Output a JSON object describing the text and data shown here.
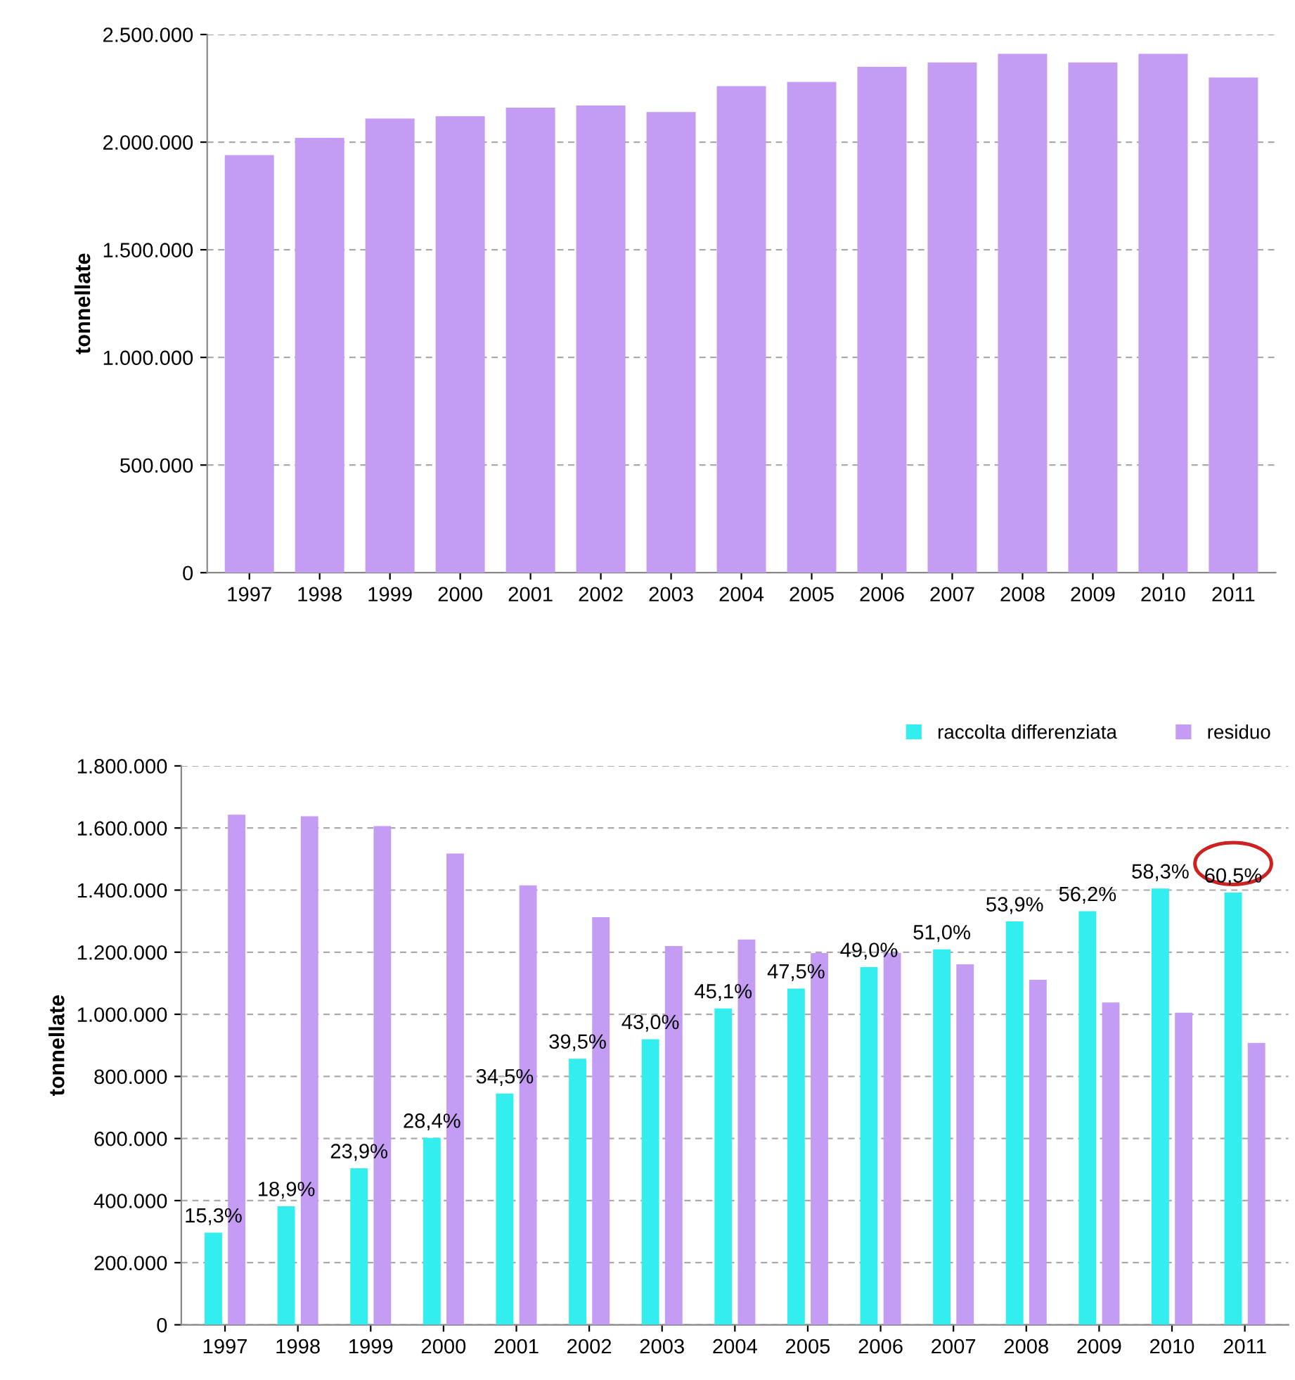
{
  "chart_data": [
    {
      "type": "bar",
      "ylabel": "tonnellate",
      "categories": [
        "1997",
        "1998",
        "1999",
        "2000",
        "2001",
        "2002",
        "2003",
        "2004",
        "2005",
        "2006",
        "2007",
        "2008",
        "2009",
        "2010",
        "2011"
      ],
      "series": [
        {
          "color": "#c49cf4",
          "values": [
            1940000,
            2020000,
            2110000,
            2120000,
            2160000,
            2170000,
            2140000,
            2260000,
            2280000,
            2350000,
            2370000,
            2410000,
            2370000,
            2410000,
            2300000
          ]
        }
      ],
      "ylim": [
        0,
        2500000
      ],
      "yticks": [
        {
          "value": 0,
          "label": "0"
        },
        {
          "value": 500000,
          "label": "500.000"
        },
        {
          "value": 1000000,
          "label": "1.000.000"
        },
        {
          "value": 1500000,
          "label": "1.500.000"
        },
        {
          "value": 2000000,
          "label": "2.000.000"
        },
        {
          "value": 2500000,
          "label": "2.500.000"
        }
      ],
      "grid": "y",
      "legend": false
    },
    {
      "type": "bar",
      "ylabel": "tonnellate",
      "categories": [
        "1997",
        "1998",
        "1999",
        "2000",
        "2001",
        "2002",
        "2003",
        "2004",
        "2005",
        "2006",
        "2007",
        "2008",
        "2009",
        "2010",
        "2011"
      ],
      "series": [
        {
          "name": "raccolta differenziata",
          "color": "#33eeee",
          "values": [
            297000,
            382000,
            504000,
            602000,
            745000,
            857000,
            920000,
            1019000,
            1083000,
            1152000,
            1209000,
            1299000,
            1332000,
            1405000,
            1392000
          ]
        },
        {
          "name": "residuo",
          "color": "#c49cf4",
          "values": [
            1643000,
            1638000,
            1606000,
            1518000,
            1415000,
            1313000,
            1220000,
            1241000,
            1197000,
            1198000,
            1161000,
            1111000,
            1038000,
            1005000,
            908000
          ]
        }
      ],
      "ylim": [
        0,
        1800000
      ],
      "yticks": [
        {
          "value": 0,
          "label": "0"
        },
        {
          "value": 200000,
          "label": "200.000"
        },
        {
          "value": 400000,
          "label": "400.000"
        },
        {
          "value": 600000,
          "label": "600.000"
        },
        {
          "value": 800000,
          "label": "800.000"
        },
        {
          "value": 1000000,
          "label": "1.000.000"
        },
        {
          "value": 1200000,
          "label": "1.200.000"
        },
        {
          "value": 1400000,
          "label": "1.400.000"
        },
        {
          "value": 1600000,
          "label": "1.600.000"
        },
        {
          "value": 1800000,
          "label": "1.800.000"
        }
      ],
      "annotations": [
        {
          "text": "15,3%",
          "x": "1997",
          "y": 297000
        },
        {
          "text": "18,9%",
          "x": "1998",
          "y": 382000
        },
        {
          "text": "23,9%",
          "x": "1999",
          "y": 504000
        },
        {
          "text": "28,4%",
          "x": "2000",
          "y": 602000
        },
        {
          "text": "34,5%",
          "x": "2001",
          "y": 745000
        },
        {
          "text": "39,5%",
          "x": "2002",
          "y": 857000
        },
        {
          "text": "43,0%",
          "x": "2003",
          "y": 920000
        },
        {
          "text": "45,1%",
          "x": "2004",
          "y": 1019000
        },
        {
          "text": "47,5%",
          "x": "2005",
          "y": 1083000
        },
        {
          "text": "49,0%",
          "x": "2006",
          "y": 1152000
        },
        {
          "text": "51,0%",
          "x": "2007",
          "y": 1209000
        },
        {
          "text": "53,9%",
          "x": "2008",
          "y": 1299000
        },
        {
          "text": "56,2%",
          "x": "2009",
          "y": 1332000
        },
        {
          "text": "58,3%",
          "x": "2010",
          "y": 1405000
        },
        {
          "text": "60,5%",
          "x": "2011",
          "y": 1392000
        }
      ],
      "grid": "y",
      "legend": "top right"
    }
  ]
}
